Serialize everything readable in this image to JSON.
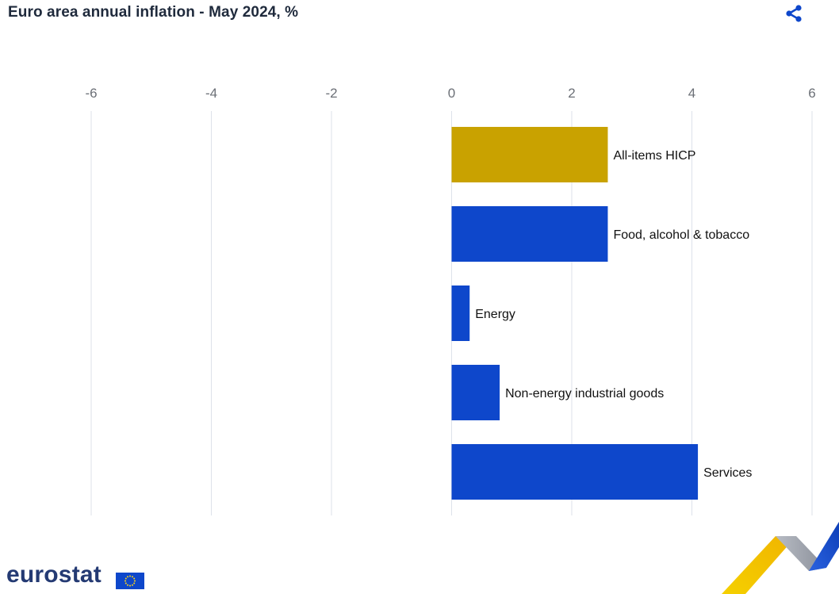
{
  "header": {
    "title": "Euro area annual inflation - May 2024, %",
    "share_icon": "share-icon"
  },
  "chart_data": {
    "type": "bar",
    "orientation": "horizontal",
    "title": "Euro area annual inflation - May 2024, %",
    "xlabel": "",
    "ylabel": "",
    "xlim": [
      -6,
      6
    ],
    "x_ticks": [
      "-6",
      "-4",
      "-2",
      "0",
      "2",
      "4",
      "6"
    ],
    "x_tick_values": [
      -6,
      -4,
      -2,
      0,
      2,
      4,
      6
    ],
    "grid": true,
    "categories": [
      "All-items HICP",
      "Food, alcohol & tobacco",
      "Energy",
      "Non-energy industrial goods",
      "Services"
    ],
    "values": [
      2.6,
      2.6,
      0.3,
      0.8,
      4.1
    ],
    "colors": [
      "#c9a200",
      "#0e47cb",
      "#0e47cb",
      "#0e47cb",
      "#0e47cb"
    ]
  },
  "footer": {
    "logo_text": "eurostat",
    "logo_icon": "eu-flag-icon"
  },
  "colors": {
    "highlight": "#c9a200",
    "bar": "#0e47cb",
    "grid": "#dde2ea",
    "title": "#1f2a3c",
    "brand": "#243a73"
  }
}
